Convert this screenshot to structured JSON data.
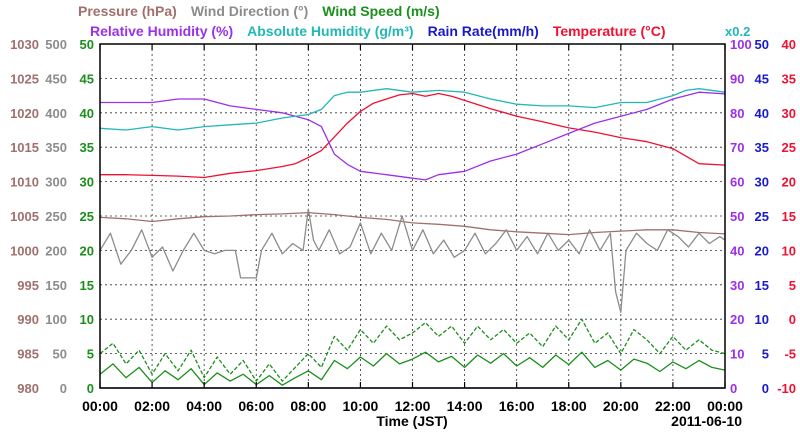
{
  "chart_data": {
    "type": "line",
    "title_rows": [
      [
        {
          "key": "pressure",
          "text": "Pressure (hPa)",
          "color": "#a0706e"
        },
        {
          "key": "wind_direction",
          "text": "Wind Direction (°)",
          "color": "#8c8c8c"
        },
        {
          "key": "wind_speed",
          "text": "Wind Speed (m/s)",
          "color": "#1c8f1c"
        }
      ],
      [
        {
          "key": "relative_humidity",
          "text": "Relative Humidity (%)",
          "color": "#9b30e8"
        },
        {
          "key": "absolute_humidity",
          "text": "Absolute Humidity (g/m³)",
          "color": "#22b8b8"
        },
        {
          "key": "rain_rate",
          "text": "Rain Rate(mm/h)",
          "color": "#1a1acc"
        },
        {
          "key": "temperature",
          "text": "Temperature (°C)",
          "color": "#ee1133"
        }
      ]
    ],
    "scale_note": {
      "text": "x0.2",
      "color": "#22b8b8"
    },
    "xlabel": "Time (JST)",
    "date_label": "2011-06-10",
    "x_ticks": [
      "00:00",
      "02:00",
      "04:00",
      "06:00",
      "08:00",
      "10:00",
      "12:00",
      "14:00",
      "16:00",
      "18:00",
      "20:00",
      "22:00",
      "00:00"
    ],
    "xlim": [
      0,
      24
    ],
    "grid": true,
    "axes": {
      "pressure": {
        "color": "#a0706e",
        "ticks": [
          "980",
          "985",
          "990",
          "995",
          "1000",
          "1005",
          "1010",
          "1015",
          "1020",
          "1025",
          "1030"
        ],
        "range": [
          980,
          1030
        ]
      },
      "wind_direction": {
        "color": "#8c8c8c",
        "ticks": [
          "0",
          "50",
          "100",
          "150",
          "200",
          "250",
          "300",
          "350",
          "400",
          "450",
          "500"
        ],
        "range": [
          0,
          500
        ]
      },
      "wind_speed": {
        "color": "#1c8f1c",
        "ticks": [
          "0",
          "5",
          "10",
          "15",
          "20",
          "25",
          "30",
          "35",
          "40",
          "45",
          "50"
        ],
        "range": [
          0,
          50
        ]
      },
      "relative_humidity": {
        "color": "#9b30e8",
        "ticks": [
          "0",
          "10",
          "20",
          "30",
          "40",
          "50",
          "60",
          "70",
          "80",
          "90",
          "100"
        ],
        "range": [
          0,
          100
        ]
      },
      "rain_rate": {
        "color": "#1a1acc",
        "ticks": [
          "0",
          "5",
          "10",
          "15",
          "20",
          "25",
          "30",
          "35",
          "40",
          "45",
          "50"
        ],
        "range": [
          0,
          50
        ]
      },
      "temperature": {
        "color": "#ee1133",
        "ticks": [
          "-10",
          "-5",
          "0",
          "5",
          "10",
          "15",
          "20",
          "25",
          "30",
          "35",
          "40"
        ],
        "range": [
          -10,
          40
        ]
      }
    },
    "series": [
      {
        "key": "temperature",
        "axis": "temperature",
        "color": "#ee1133",
        "style": "solid",
        "x": [
          0,
          1,
          2,
          3,
          4,
          5,
          6,
          7,
          7.5,
          8,
          8.5,
          9,
          9.5,
          10,
          10.5,
          11,
          11.5,
          12,
          12.5,
          13,
          13.5,
          14,
          15,
          16,
          17,
          18,
          19,
          20,
          21,
          22,
          23,
          24
        ],
        "y": [
          21.0,
          21.0,
          20.9,
          20.8,
          20.6,
          21.2,
          21.6,
          22.2,
          22.6,
          23.5,
          24.5,
          26.5,
          28.5,
          30.2,
          31.4,
          32.0,
          32.6,
          32.8,
          32.4,
          32.8,
          32.4,
          31.8,
          30.6,
          29.5,
          28.7,
          27.8,
          27.2,
          26.4,
          25.8,
          24.8,
          22.6,
          22.4
        ]
      },
      {
        "key": "relative_humidity",
        "axis": "relative_humidity",
        "color": "#9b30e8",
        "style": "solid",
        "x": [
          0,
          1,
          2,
          3,
          4,
          5,
          6,
          7,
          8,
          8.5,
          9,
          9.5,
          10,
          11,
          12,
          12.5,
          13,
          14,
          15,
          16,
          17,
          18,
          19,
          20,
          21,
          22,
          23,
          24
        ],
        "y": [
          83.0,
          83.0,
          83.0,
          84.0,
          84.0,
          82.0,
          81.0,
          80.0,
          78.0,
          76.0,
          68.0,
          65.0,
          63.0,
          62.0,
          61.0,
          60.5,
          62.0,
          63.0,
          66.0,
          68.0,
          71.0,
          74.0,
          77.0,
          79.0,
          81.0,
          84.0,
          86.0,
          85.5
        ]
      },
      {
        "key": "absolute_humidity",
        "axis": "relative_humidity",
        "color": "#22b8b8",
        "style": "solid",
        "x": [
          0,
          1,
          2,
          3,
          4,
          5,
          6,
          7,
          8,
          8.5,
          9,
          9.5,
          10,
          11,
          12,
          13,
          14,
          15,
          16,
          17,
          18,
          19,
          20,
          21,
          22,
          22.5,
          23,
          24
        ],
        "y": [
          75.5,
          75.0,
          76.0,
          75.0,
          76.0,
          76.5,
          77.0,
          78.5,
          79.5,
          81.0,
          85.0,
          86.0,
          86.0,
          87.0,
          86.0,
          86.5,
          86.0,
          84.0,
          82.5,
          82.0,
          82.0,
          81.5,
          83.0,
          83.0,
          85.0,
          86.5,
          87.0,
          86.0
        ]
      },
      {
        "key": "pressure",
        "axis": "pressure",
        "color": "#a0706e",
        "style": "solid",
        "x": [
          0,
          1,
          2,
          3,
          4,
          5,
          6,
          7,
          8,
          9,
          10,
          11,
          12,
          13,
          14,
          15,
          16,
          17,
          18,
          19,
          20,
          21,
          22,
          23,
          24
        ],
        "y": [
          1004.8,
          1004.6,
          1004.2,
          1004.6,
          1004.9,
          1005.0,
          1005.2,
          1005.3,
          1005.5,
          1005.2,
          1004.8,
          1004.5,
          1004.0,
          1003.8,
          1003.5,
          1003.0,
          1002.7,
          1002.5,
          1002.3,
          1002.6,
          1002.8,
          1003.0,
          1003.0,
          1002.6,
          1002.4
        ]
      },
      {
        "key": "wind_direction",
        "axis": "wind_direction",
        "color": "#8c8c8c",
        "style": "solid",
        "x": [
          0,
          0.4,
          0.8,
          1.2,
          1.6,
          2,
          2.4,
          2.8,
          3.2,
          3.6,
          4,
          4.4,
          4.8,
          5.2,
          5.4,
          5.6,
          6,
          6.2,
          6.6,
          7,
          7.4,
          7.8,
          8,
          8.2,
          8.4,
          8.8,
          9.2,
          9.6,
          10,
          10.4,
          10.8,
          11.2,
          11.6,
          12,
          12.4,
          12.8,
          13.2,
          13.6,
          14,
          14.4,
          14.8,
          15.2,
          15.6,
          16,
          16.4,
          16.8,
          17.2,
          17.6,
          18,
          18.4,
          18.8,
          19.2,
          19.6,
          19.8,
          20,
          20.2,
          20.6,
          21,
          21.4,
          21.8,
          22.2,
          22.6,
          23,
          23.4,
          23.8,
          24
        ],
        "y": [
          200,
          225,
          180,
          200,
          230,
          190,
          205,
          170,
          200,
          225,
          200,
          195,
          200,
          200,
          160,
          160,
          160,
          200,
          225,
          195,
          210,
          200,
          260,
          215,
          200,
          230,
          195,
          205,
          240,
          195,
          225,
          200,
          250,
          200,
          230,
          195,
          215,
          190,
          200,
          225,
          195,
          210,
          230,
          200,
          220,
          195,
          225,
          200,
          215,
          195,
          230,
          200,
          225,
          140,
          110,
          200,
          225,
          210,
          200,
          230,
          220,
          205,
          225,
          210,
          220,
          215
        ]
      },
      {
        "key": "wind_speed",
        "axis": "wind_speed",
        "color": "#1c8f1c",
        "style": "solid",
        "x": [
          0,
          0.5,
          1,
          1.5,
          2,
          2.5,
          3,
          3.5,
          4,
          4.5,
          5,
          5.5,
          6,
          6.5,
          7,
          7.5,
          8,
          8.5,
          9,
          9.5,
          10,
          10.5,
          11,
          11.5,
          12,
          12.5,
          13,
          13.5,
          14,
          14.5,
          15,
          15.5,
          16,
          16.5,
          17,
          17.5,
          18,
          18.5,
          19,
          19.5,
          20,
          20.5,
          21,
          21.5,
          22,
          22.5,
          23,
          23.5,
          24
        ],
        "y": [
          2.0,
          3.5,
          1.5,
          3.0,
          0.8,
          2.5,
          1.2,
          2.8,
          0.5,
          2.2,
          1.0,
          2.0,
          0.5,
          1.8,
          0.4,
          1.5,
          2.5,
          1.2,
          4.0,
          2.8,
          4.5,
          3.2,
          5.0,
          3.5,
          4.2,
          5.2,
          3.8,
          4.6,
          3.0,
          4.8,
          3.6,
          5.0,
          3.2,
          4.4,
          3.0,
          4.8,
          3.4,
          5.2,
          3.0,
          4.0,
          2.6,
          4.2,
          3.6,
          2.4,
          3.8,
          2.8,
          4.0,
          3.0,
          2.6
        ]
      },
      {
        "key": "wind_gust",
        "axis": "wind_speed",
        "color": "#1c8f1c",
        "style": "dashed",
        "x": [
          0,
          0.5,
          1,
          1.5,
          2,
          2.5,
          3,
          3.5,
          4,
          4.5,
          5,
          5.5,
          6,
          6.5,
          7,
          7.5,
          8,
          8.5,
          9,
          9.5,
          10,
          10.5,
          11,
          11.5,
          12,
          12.5,
          13,
          13.5,
          14,
          14.5,
          15,
          15.5,
          16,
          16.5,
          17,
          17.5,
          18,
          18.5,
          19,
          19.5,
          20,
          20.5,
          21,
          21.5,
          22,
          22.5,
          23,
          23.5,
          24
        ],
        "y": [
          5.0,
          6.5,
          3.5,
          5.5,
          2.0,
          5.0,
          2.5,
          5.5,
          1.5,
          4.5,
          2.0,
          4.0,
          1.0,
          3.5,
          1.0,
          3.0,
          5.0,
          3.0,
          7.5,
          5.5,
          8.5,
          6.5,
          9.0,
          7.0,
          8.0,
          9.5,
          7.5,
          9.0,
          6.5,
          9.0,
          7.0,
          8.5,
          6.5,
          8.0,
          6.0,
          9.0,
          7.0,
          10.0,
          6.5,
          8.0,
          5.0,
          8.5,
          7.0,
          5.0,
          7.5,
          5.5,
          7.0,
          5.5,
          5.0
        ]
      },
      {
        "key": "rain_rate",
        "axis": "rain_rate",
        "color": "#1a1acc",
        "style": "solid",
        "x": [
          0,
          24
        ],
        "y": [
          0,
          0
        ]
      }
    ]
  }
}
